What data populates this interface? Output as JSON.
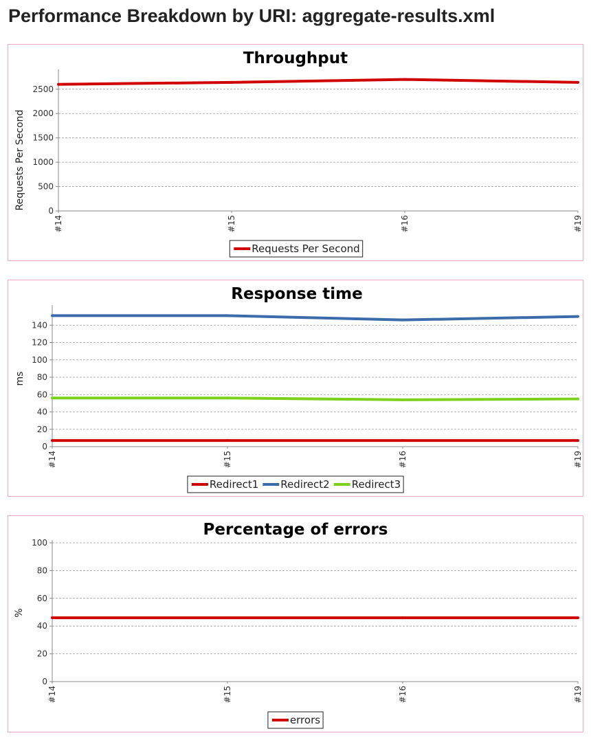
{
  "page": {
    "heading": "Performance Breakdown by URI: aggregate-results.xml"
  },
  "colors": {
    "panel_border": "#f0a8bc",
    "grid": "#9a9a9a",
    "axis": "#888888"
  },
  "chart_data": [
    {
      "type": "line",
      "title": "Throughput",
      "xlabel": "",
      "ylabel": "Requests Per Second",
      "x": [
        "#14",
        "#15",
        "#16",
        "#19"
      ],
      "yticks": [
        0,
        500,
        1000,
        1500,
        2000,
        2500
      ],
      "ylim": [
        0,
        2850
      ],
      "grid": true,
      "legend_position": "bottom",
      "series": [
        {
          "name": "Requests Per Second",
          "color": "#d00000",
          "values": [
            2600,
            2640,
            2700,
            2640
          ]
        }
      ]
    },
    {
      "type": "line",
      "title": "Response time",
      "xlabel": "",
      "ylabel": "ms",
      "x": [
        "#14",
        "#15",
        "#16",
        "#19"
      ],
      "yticks": [
        0,
        20,
        40,
        60,
        80,
        100,
        120,
        140
      ],
      "ylim": [
        0,
        160
      ],
      "grid": true,
      "legend_position": "bottom",
      "series": [
        {
          "name": "Redirect1",
          "color": "#d00000",
          "values": [
            7,
            7,
            7,
            7
          ]
        },
        {
          "name": "Redirect2",
          "color": "#3c6bab",
          "values": [
            151,
            151,
            146,
            150
          ]
        },
        {
          "name": "Redirect3",
          "color": "#7cd11d",
          "values": [
            56,
            56,
            54,
            55
          ]
        }
      ]
    },
    {
      "type": "line",
      "title": "Percentage of errors",
      "xlabel": "",
      "ylabel": "%",
      "x": [
        "#14",
        "#15",
        "#16",
        "#19"
      ],
      "yticks": [
        0,
        20,
        40,
        60,
        80,
        100
      ],
      "ylim": [
        0,
        100
      ],
      "grid": true,
      "legend_position": "bottom",
      "series": [
        {
          "name": "errors",
          "color": "#d00000",
          "values": [
            46,
            46,
            46,
            46
          ]
        }
      ]
    }
  ]
}
